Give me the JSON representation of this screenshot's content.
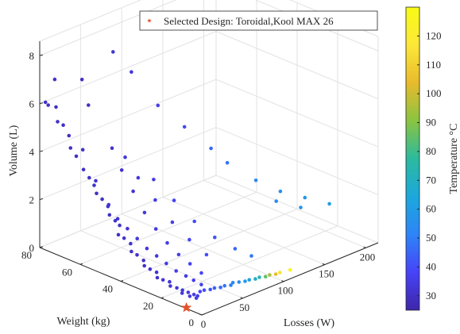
{
  "chart_data": {
    "type": "scatter3d",
    "legend": {
      "label": "Selected Design: Toroidal,Kool MAX 26",
      "position": "top"
    },
    "x_axis": {
      "label": "Losses (W)",
      "ticks": [
        "0",
        "50",
        "100",
        "150",
        "200"
      ],
      "range": [
        0,
        215
      ]
    },
    "y_axis": {
      "label": "Weight (kg)",
      "ticks": [
        "0",
        "20",
        "40",
        "60",
        "80"
      ],
      "range": [
        0,
        80
      ]
    },
    "z_axis": {
      "label": "Volume (L)",
      "ticks": [
        "0",
        "2",
        "4",
        "6",
        "8"
      ],
      "range": [
        0,
        8.6
      ]
    },
    "colorbar": {
      "label": "Temperature °C",
      "ticks": [
        "30",
        "40",
        "50",
        "60",
        "70",
        "80",
        "90",
        "100",
        "110",
        "120"
      ],
      "range": [
        25,
        130
      ]
    },
    "colormap": [
      "#3e26a8",
      "#4743f8",
      "#2d85f7",
      "#1ca8dc",
      "#2bba9e",
      "#8ac441",
      "#e8ba2c",
      "#fce838",
      "#f9fb15"
    ],
    "grid": true,
    "selected_point": {
      "losses": 1,
      "weight": 8,
      "volume": 0.01,
      "color": "#e2532b",
      "marker": "star"
    },
    "points": [
      {
        "x": 2,
        "y": 78,
        "z": 6.1,
        "t": 30
      },
      {
        "x": 3,
        "y": 77,
        "z": 6.0,
        "t": 30
      },
      {
        "x": 5,
        "y": 74,
        "z": 6.0,
        "t": 30
      },
      {
        "x": 2,
        "y": 72,
        "z": 5.5,
        "t": 30
      },
      {
        "x": 4,
        "y": 70,
        "z": 5.4,
        "t": 30
      },
      {
        "x": 6,
        "y": 68,
        "z": 5.0,
        "t": 30
      },
      {
        "x": 3,
        "y": 66,
        "z": 4.6,
        "t": 30
      },
      {
        "x": 5,
        "y": 64,
        "z": 4.3,
        "t": 30
      },
      {
        "x": 8,
        "y": 62,
        "z": 4.6,
        "t": 31
      },
      {
        "x": 4,
        "y": 60,
        "z": 3.9,
        "t": 30
      },
      {
        "x": 6,
        "y": 58,
        "z": 3.6,
        "t": 30
      },
      {
        "x": 9,
        "y": 56,
        "z": 3.5,
        "t": 31
      },
      {
        "x": 5,
        "y": 54,
        "z": 3.1,
        "t": 30
      },
      {
        "x": 7,
        "y": 52,
        "z": 2.9,
        "t": 30
      },
      {
        "x": 10,
        "y": 50,
        "z": 2.7,
        "t": 31
      },
      {
        "x": 6,
        "y": 48,
        "z": 2.4,
        "t": 30
      },
      {
        "x": 8,
        "y": 46,
        "z": 2.2,
        "t": 31
      },
      {
        "x": 11,
        "y": 45,
        "z": 2.0,
        "t": 31
      },
      {
        "x": 7,
        "y": 44,
        "z": 1.7,
        "t": 30
      },
      {
        "x": 9,
        "y": 42,
        "z": 1.6,
        "t": 31
      },
      {
        "x": 12,
        "y": 40,
        "z": 1.4,
        "t": 31
      },
      {
        "x": 8,
        "y": 38,
        "z": 1.2,
        "t": 31
      },
      {
        "x": 10,
        "y": 36,
        "z": 1.1,
        "t": 31
      },
      {
        "x": 13,
        "y": 34,
        "z": 0.9,
        "t": 31
      },
      {
        "x": 9,
        "y": 32,
        "z": 0.8,
        "t": 31
      },
      {
        "x": 11,
        "y": 30,
        "z": 0.7,
        "t": 31
      },
      {
        "x": 14,
        "y": 28,
        "z": 0.6,
        "t": 32
      },
      {
        "x": 10,
        "y": 26,
        "z": 0.5,
        "t": 31
      },
      {
        "x": 12,
        "y": 24,
        "z": 0.45,
        "t": 32
      },
      {
        "x": 15,
        "y": 22,
        "z": 0.4,
        "t": 32
      },
      {
        "x": 11,
        "y": 20,
        "z": 0.35,
        "t": 32
      },
      {
        "x": 14,
        "y": 18,
        "z": 0.3,
        "t": 33
      },
      {
        "x": 16,
        "y": 16,
        "z": 0.25,
        "t": 33
      },
      {
        "x": 13,
        "y": 15,
        "z": 0.2,
        "t": 33
      },
      {
        "x": 18,
        "y": 14,
        "z": 0.2,
        "t": 34
      },
      {
        "x": 20,
        "y": 12,
        "z": 0.15,
        "t": 35
      },
      {
        "x": 15,
        "y": 12,
        "z": 0.15,
        "t": 34
      },
      {
        "x": 22,
        "y": 11,
        "z": 0.1,
        "t": 36
      },
      {
        "x": 18,
        "y": 10,
        "z": 0.1,
        "t": 35
      },
      {
        "x": 12,
        "y": 58,
        "z": 3.2,
        "t": 31
      },
      {
        "x": 14,
        "y": 52,
        "z": 2.5,
        "t": 31
      },
      {
        "x": 16,
        "y": 48,
        "z": 2.1,
        "t": 32
      },
      {
        "x": 18,
        "y": 44,
        "z": 1.8,
        "t": 32
      },
      {
        "x": 20,
        "y": 40,
        "z": 1.5,
        "t": 33
      },
      {
        "x": 22,
        "y": 36,
        "z": 1.2,
        "t": 33
      },
      {
        "x": 24,
        "y": 32,
        "z": 1.0,
        "t": 34
      },
      {
        "x": 26,
        "y": 28,
        "z": 0.8,
        "t": 34
      },
      {
        "x": 28,
        "y": 24,
        "z": 0.6,
        "t": 35
      },
      {
        "x": 30,
        "y": 20,
        "z": 0.5,
        "t": 35
      },
      {
        "x": 32,
        "y": 17,
        "z": 0.4,
        "t": 36
      },
      {
        "x": 34,
        "y": 14,
        "z": 0.3,
        "t": 37
      },
      {
        "x": 10,
        "y": 60,
        "z": 6.5,
        "t": 30
      },
      {
        "x": 12,
        "y": 64,
        "z": 7.4,
        "t": 30
      },
      {
        "x": 6,
        "y": 75,
        "z": 7.1,
        "t": 30
      },
      {
        "x": 14,
        "y": 50,
        "z": 5.0,
        "t": 31
      },
      {
        "x": 16,
        "y": 46,
        "z": 4.2,
        "t": 31
      },
      {
        "x": 20,
        "y": 42,
        "z": 3.4,
        "t": 32
      },
      {
        "x": 24,
        "y": 38,
        "z": 2.6,
        "t": 33
      },
      {
        "x": 28,
        "y": 34,
        "z": 2.0,
        "t": 34
      },
      {
        "x": 32,
        "y": 30,
        "z": 1.5,
        "t": 35
      },
      {
        "x": 36,
        "y": 26,
        "z": 1.1,
        "t": 36
      },
      {
        "x": 40,
        "y": 22,
        "z": 0.8,
        "t": 37
      },
      {
        "x": 44,
        "y": 18,
        "z": 0.5,
        "t": 38
      },
      {
        "x": 30,
        "y": 50,
        "z": 4.4,
        "t": 33
      },
      {
        "x": 36,
        "y": 46,
        "z": 3.6,
        "t": 34
      },
      {
        "x": 42,
        "y": 40,
        "z": 2.8,
        "t": 35
      },
      {
        "x": 48,
        "y": 34,
        "z": 2.0,
        "t": 36
      },
      {
        "x": 54,
        "y": 28,
        "z": 1.4,
        "t": 38
      },
      {
        "x": 60,
        "y": 22,
        "z": 0.9,
        "t": 40
      },
      {
        "x": 50,
        "y": 44,
        "z": 3.4,
        "t": 35
      },
      {
        "x": 60,
        "y": 38,
        "z": 2.6,
        "t": 37
      },
      {
        "x": 70,
        "y": 32,
        "z": 1.8,
        "t": 40
      },
      {
        "x": 80,
        "y": 26,
        "z": 1.2,
        "t": 42
      },
      {
        "x": 90,
        "y": 20,
        "z": 0.8,
        "t": 45
      },
      {
        "x": 100,
        "y": 16,
        "z": 0.5,
        "t": 48
      },
      {
        "x": 40,
        "y": 60,
        "z": 8.3,
        "t": 32
      },
      {
        "x": 50,
        "y": 55,
        "z": 7.5,
        "t": 33
      },
      {
        "x": 70,
        "y": 50,
        "z": 6.0,
        "t": 36
      },
      {
        "x": 90,
        "y": 45,
        "z": 5.0,
        "t": 40
      },
      {
        "x": 110,
        "y": 40,
        "z": 4.0,
        "t": 45
      },
      {
        "x": 120,
        "y": 36,
        "z": 3.4,
        "t": 48
      },
      {
        "x": 140,
        "y": 30,
        "z": 2.6,
        "t": 52
      },
      {
        "x": 160,
        "y": 26,
        "z": 2.0,
        "t": 55
      },
      {
        "x": 180,
        "y": 22,
        "z": 1.6,
        "t": 58
      },
      {
        "x": 200,
        "y": 18,
        "z": 1.2,
        "t": 60
      },
      {
        "x": 170,
        "y": 20,
        "z": 1.4,
        "t": 57
      },
      {
        "x": 150,
        "y": 24,
        "z": 1.8,
        "t": 54
      },
      {
        "x": 60,
        "y": 10,
        "z": 0.05,
        "t": 50
      },
      {
        "x": 65,
        "y": 11,
        "z": 0.05,
        "t": 52
      },
      {
        "x": 70,
        "y": 10,
        "z": 0.04,
        "t": 55
      },
      {
        "x": 75,
        "y": 9,
        "z": 0.04,
        "t": 58
      },
      {
        "x": 80,
        "y": 9,
        "z": 0.03,
        "t": 62
      },
      {
        "x": 85,
        "y": 8,
        "z": 0.03,
        "t": 68
      },
      {
        "x": 90,
        "y": 8,
        "z": 0.03,
        "t": 75
      },
      {
        "x": 95,
        "y": 7,
        "z": 0.02,
        "t": 85
      },
      {
        "x": 100,
        "y": 7,
        "z": 0.02,
        "t": 95
      },
      {
        "x": 105,
        "y": 6,
        "z": 0.02,
        "t": 105
      },
      {
        "x": 110,
        "y": 6,
        "z": 0.02,
        "t": 115
      },
      {
        "x": 120,
        "y": 5,
        "z": 0.02,
        "t": 125
      },
      {
        "x": 40,
        "y": 12,
        "z": 0.08,
        "t": 42
      },
      {
        "x": 45,
        "y": 12,
        "z": 0.07,
        "t": 44
      },
      {
        "x": 50,
        "y": 11,
        "z": 0.06,
        "t": 46
      },
      {
        "x": 55,
        "y": 11,
        "z": 0.06,
        "t": 48
      },
      {
        "x": 30,
        "y": 13,
        "z": 0.1,
        "t": 38
      },
      {
        "x": 35,
        "y": 13,
        "z": 0.09,
        "t": 40
      }
    ]
  }
}
